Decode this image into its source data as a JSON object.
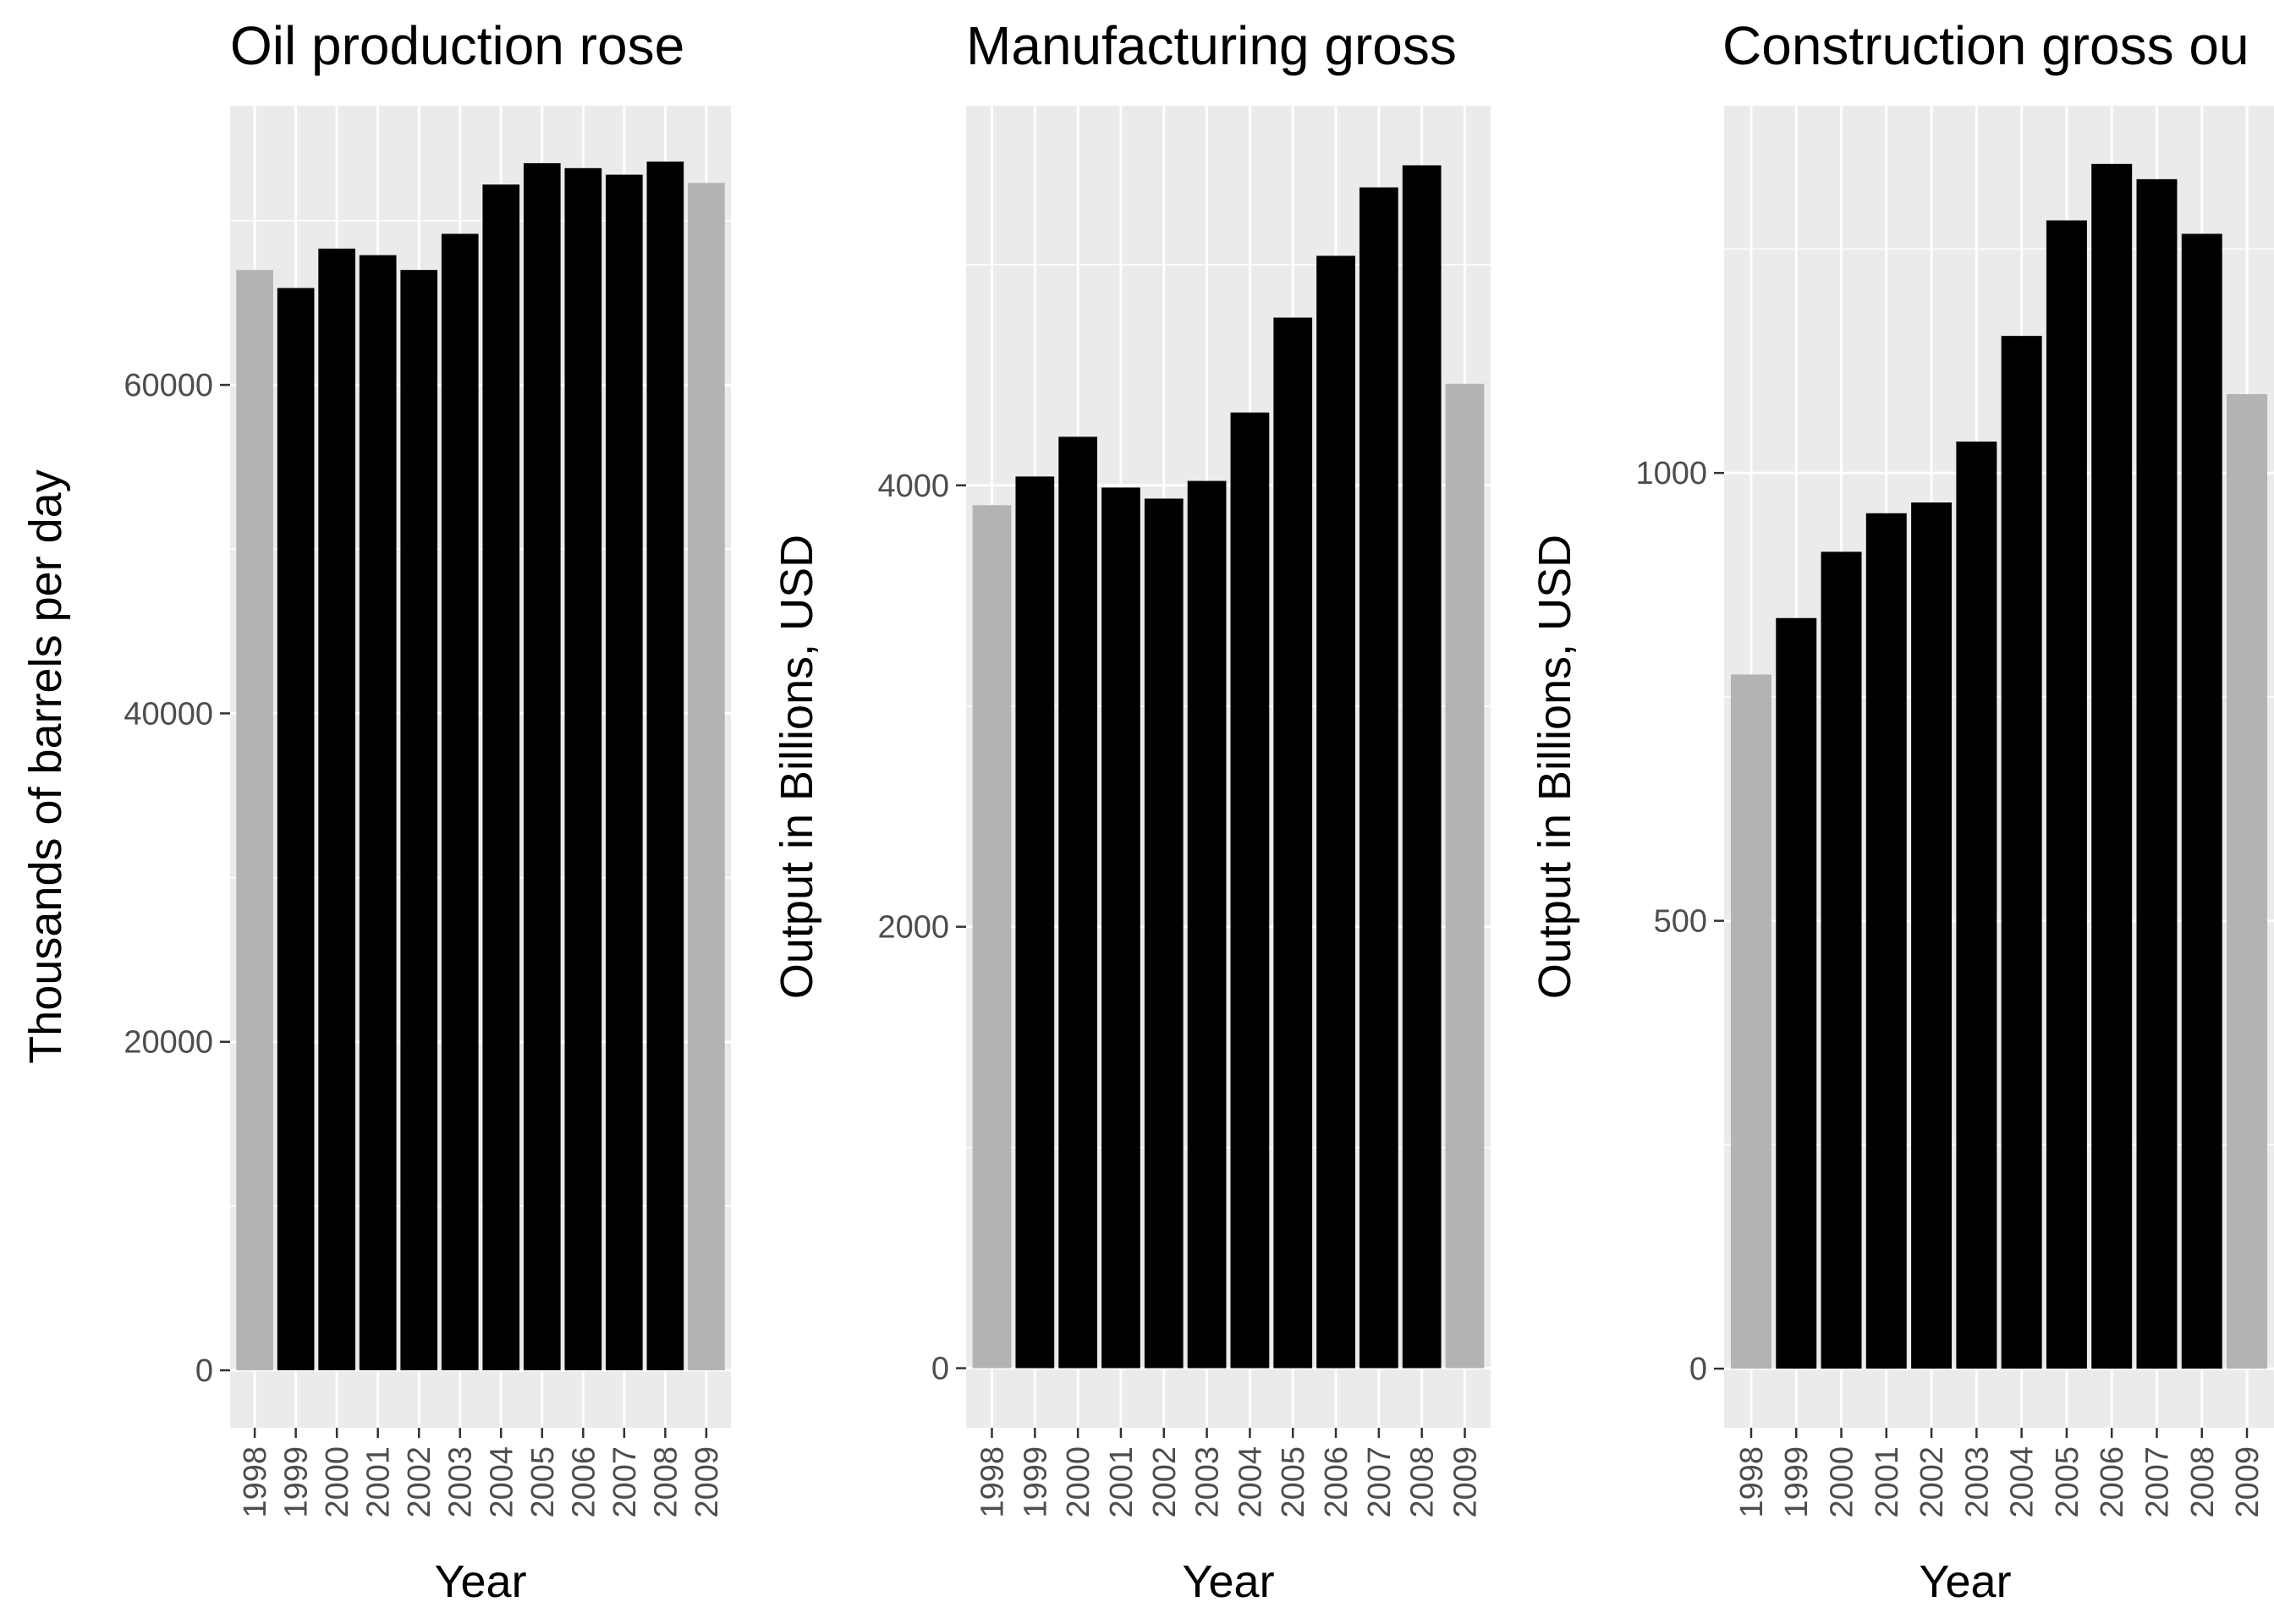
{
  "colors": {
    "panel": "#ebebeb",
    "grid": "#ffffff",
    "bar_highlight": "#000000",
    "bar_muted": "#b3b3b3",
    "tick": "#333333"
  },
  "chart_data": [
    {
      "type": "bar",
      "title": "Oil production rose",
      "xlabel": "Year",
      "ylabel": "Thousands of barrels per day",
      "categories": [
        "1998",
        "1999",
        "2000",
        "2001",
        "2002",
        "2003",
        "2004",
        "2005",
        "2006",
        "2007",
        "2008",
        "2009"
      ],
      "values": [
        67000,
        65900,
        68300,
        67900,
        67000,
        69200,
        72200,
        73500,
        73200,
        72800,
        73600,
        72300
      ],
      "highlight": [
        false,
        true,
        true,
        true,
        true,
        true,
        true,
        true,
        true,
        true,
        true,
        false
      ],
      "yticks": [
        0,
        20000,
        40000,
        60000
      ],
      "ylim": [
        -3500,
        77000
      ],
      "grid": true,
      "legend": "none"
    },
    {
      "type": "bar",
      "title": "Manufacturing gross",
      "xlabel": "Year",
      "ylabel": "Output in Billions, USD",
      "categories": [
        "1998",
        "1999",
        "2000",
        "2001",
        "2002",
        "2003",
        "2004",
        "2005",
        "2006",
        "2007",
        "2008",
        "2009"
      ],
      "values": [
        3910,
        4040,
        4220,
        3990,
        3940,
        4020,
        4330,
        4760,
        5040,
        5350,
        5450,
        4460
      ],
      "highlight": [
        false,
        true,
        true,
        true,
        true,
        true,
        true,
        true,
        true,
        true,
        true,
        false
      ],
      "yticks": [
        0,
        2000,
        4000
      ],
      "ylim": [
        -270,
        5720
      ],
      "grid": true,
      "legend": "none"
    },
    {
      "type": "bar",
      "title": "Construction gross ou",
      "xlabel": "Year",
      "ylabel": "Output in Billions, USD",
      "categories": [
        "1998",
        "1999",
        "2000",
        "2001",
        "2002",
        "2003",
        "2004",
        "2005",
        "2006",
        "2007",
        "2008",
        "2009"
      ],
      "values": [
        775,
        838,
        912,
        955,
        967,
        1035,
        1153,
        1282,
        1345,
        1328,
        1267,
        1088
      ],
      "highlight": [
        false,
        true,
        true,
        true,
        true,
        true,
        true,
        true,
        true,
        true,
        true,
        false
      ],
      "yticks": [
        0,
        500,
        1000
      ],
      "ylim": [
        -66,
        1410
      ],
      "grid": true,
      "legend": "none"
    }
  ]
}
